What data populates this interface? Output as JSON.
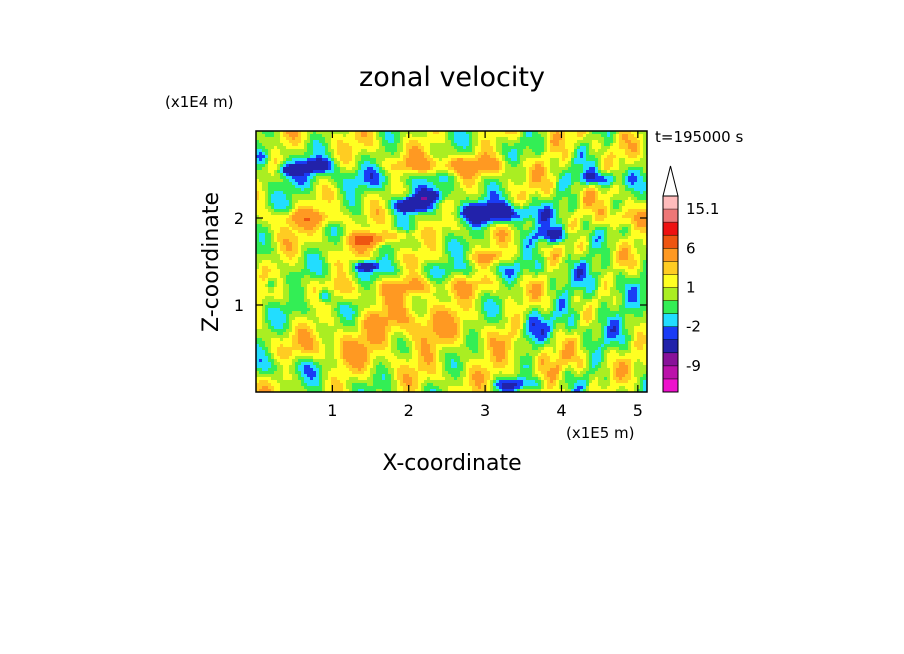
{
  "chart_data": {
    "type": "heatmap",
    "title": "zonal velocity",
    "xlabel": "X-coordinate",
    "ylabel": "Z-coordinate",
    "x_unit": "(x1E5 m)",
    "y_unit": "(x1E4 m)",
    "time_label": "t=195000 s",
    "xlim": [
      0,
      5.12
    ],
    "ylim": [
      0,
      3.0
    ],
    "x_ticks": [
      1,
      2,
      3,
      4,
      5
    ],
    "y_ticks": [
      1,
      2
    ],
    "x_tick_labels": [
      "1",
      "2",
      "3",
      "4",
      "5"
    ],
    "y_tick_labels": [
      "1",
      "2"
    ],
    "grid": false,
    "colorbar": {
      "levels": [
        -12,
        -9,
        -6,
        -3,
        -2,
        -1,
        0,
        1,
        2,
        3,
        6,
        9,
        12,
        15.1
      ],
      "colors": [
        "#ee11cc",
        "#bb11aa",
        "#881199",
        "#2222aa",
        "#1a3cf5",
        "#22ddff",
        "#33ee55",
        "#aaee22",
        "#ffff22",
        "#ffcc22",
        "#ff9922",
        "#ee5511",
        "#ee1111",
        "#ee7777",
        "#ffbbbb"
      ],
      "tick_labels": [
        "15.1",
        "6",
        "1",
        "-2",
        "-9"
      ],
      "extend_max": true
    },
    "features": [
      {
        "x": 1.0,
        "z": 2.45,
        "sx": 1.5,
        "sz": 0.18,
        "amp": -1.8
      },
      {
        "x": 3.1,
        "z": 2.05,
        "sx": 0.55,
        "sz": 0.12,
        "amp": -6.0
      },
      {
        "x": 3.9,
        "z": 1.8,
        "sx": 0.3,
        "sz": 0.1,
        "amp": -4.5
      },
      {
        "x": 2.0,
        "z": 2.15,
        "sx": 0.25,
        "sz": 0.09,
        "amp": -6.5
      },
      {
        "x": 2.3,
        "z": 2.25,
        "sx": 0.2,
        "sz": 0.07,
        "amp": -4.0
      },
      {
        "x": 0.8,
        "z": 2.6,
        "sx": 0.18,
        "sz": 0.08,
        "amp": -5.0
      },
      {
        "x": 0.4,
        "z": 2.55,
        "sx": 0.12,
        "sz": 0.07,
        "amp": -4.0
      },
      {
        "x": 4.5,
        "z": 2.45,
        "sx": 0.3,
        "sz": 0.09,
        "amp": -4.0
      },
      {
        "x": 1.45,
        "z": 1.45,
        "sx": 0.14,
        "sz": 0.06,
        "amp": -5.5
      },
      {
        "x": 0.9,
        "z": 1.1,
        "sx": 0.1,
        "sz": 0.08,
        "amp": -5.0
      },
      {
        "x": 0.2,
        "z": 1.25,
        "sx": 0.08,
        "sz": 0.1,
        "amp": -4.0
      },
      {
        "x": 0.1,
        "z": 2.7,
        "sx": 0.1,
        "sz": 0.1,
        "amp": -3.5
      },
      {
        "x": 1.45,
        "z": 1.75,
        "sx": 0.2,
        "sz": 0.07,
        "amp": 6.5
      },
      {
        "x": 0.7,
        "z": 2.0,
        "sx": 0.5,
        "sz": 0.1,
        "amp": 3.5
      },
      {
        "x": 2.5,
        "z": 2.6,
        "sx": 0.9,
        "sz": 0.1,
        "amp": 3.0
      },
      {
        "x": 3.1,
        "z": 1.55,
        "sx": 0.25,
        "sz": 0.08,
        "amp": 2.5
      },
      {
        "x": 4.75,
        "z": 2.0,
        "sx": 0.25,
        "sz": 0.12,
        "amp": 3.0
      },
      {
        "x": 1.9,
        "z": 1.8,
        "sx": 0.25,
        "sz": 0.07,
        "amp": 2.8
      },
      {
        "x": 2.0,
        "z": 0.8,
        "sx": 0.7,
        "sz": 0.35,
        "amp": 2.2
      },
      {
        "x": 1.1,
        "z": 0.5,
        "sx": 0.5,
        "sz": 0.25,
        "amp": 1.8
      },
      {
        "x": 3.5,
        "z": 0.3,
        "sx": 0.8,
        "sz": 0.25,
        "amp": 1.2
      },
      {
        "x": 2.6,
        "z": 1.4,
        "sx": 1.2,
        "sz": 0.1,
        "amp": -1.6
      },
      {
        "x": 2.0,
        "z": 1.2,
        "sx": 0.9,
        "sz": 0.1,
        "amp": 2.0
      },
      {
        "x": 1.2,
        "z": 0.95,
        "sx": 0.7,
        "sz": 0.1,
        "amp": -1.5
      },
      {
        "x": 0.5,
        "z": 0.3,
        "sx": 0.7,
        "sz": 0.12,
        "amp": -1.5
      },
      {
        "x": 3.4,
        "z": 0.08,
        "sx": 0.35,
        "sz": 0.08,
        "amp": -4.0
      },
      {
        "x": 4.5,
        "z": 1.0,
        "sx": 0.6,
        "sz": 0.5,
        "amp": -1.3
      },
      {
        "x": 3.6,
        "z": 0.7,
        "sx": 0.15,
        "sz": 0.2,
        "amp": -3.0
      }
    ]
  }
}
